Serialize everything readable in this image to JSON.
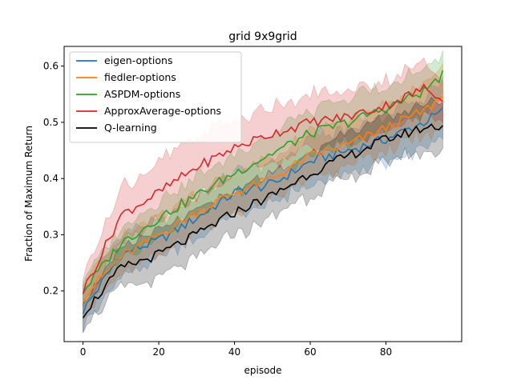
{
  "chart_data": {
    "type": "line",
    "title": "grid  9x9grid",
    "xlabel": "episode",
    "ylabel": "Fraction of Maximum Return",
    "xlim": [
      -5,
      100
    ],
    "ylim": [
      0.11,
      0.635
    ],
    "xticks": [
      0,
      20,
      40,
      60,
      80
    ],
    "yticks": [
      0.2,
      0.3,
      0.4,
      0.5,
      0.6
    ],
    "legend_position": "upper-left",
    "grid": false,
    "series": [
      {
        "name": "eigen-options",
        "color": "#1f77b4",
        "x": [
          0,
          10,
          20,
          30,
          40,
          50,
          60,
          70,
          80,
          90,
          95
        ],
        "y": [
          0.165,
          0.265,
          0.29,
          0.33,
          0.375,
          0.39,
          0.43,
          0.45,
          0.47,
          0.5,
          0.52
        ],
        "band": [
          0.03,
          0.035,
          0.035,
          0.035,
          0.035,
          0.035,
          0.04,
          0.04,
          0.04,
          0.045,
          0.05
        ]
      },
      {
        "name": "fiedler-options",
        "color": "#ff7f0e",
        "x": [
          0,
          10,
          20,
          30,
          40,
          50,
          60,
          70,
          80,
          90,
          95
        ],
        "y": [
          0.19,
          0.26,
          0.3,
          0.34,
          0.375,
          0.4,
          0.44,
          0.46,
          0.49,
          0.52,
          0.545
        ],
        "band": [
          0.03,
          0.035,
          0.035,
          0.035,
          0.035,
          0.035,
          0.04,
          0.04,
          0.04,
          0.045,
          0.05
        ]
      },
      {
        "name": "ASPDM-options",
        "color": "#2ca02c",
        "x": [
          0,
          10,
          20,
          30,
          40,
          50,
          60,
          70,
          80,
          90,
          95
        ],
        "y": [
          0.2,
          0.285,
          0.33,
          0.37,
          0.41,
          0.445,
          0.48,
          0.5,
          0.525,
          0.555,
          0.585
        ],
        "band": [
          0.02,
          0.03,
          0.03,
          0.035,
          0.035,
          0.035,
          0.04,
          0.04,
          0.04,
          0.04,
          0.035
        ]
      },
      {
        "name": "ApproxAverage-options",
        "color": "#d62728",
        "x": [
          0,
          10,
          20,
          30,
          40,
          50,
          60,
          70,
          80,
          90,
          95
        ],
        "y": [
          0.2,
          0.335,
          0.375,
          0.42,
          0.455,
          0.48,
          0.5,
          0.51,
          0.53,
          0.56,
          0.545
        ],
        "band": [
          0.025,
          0.05,
          0.055,
          0.055,
          0.05,
          0.05,
          0.05,
          0.045,
          0.045,
          0.045,
          0.045
        ]
      },
      {
        "name": "Q-learning",
        "color": "#000000",
        "x": [
          0,
          10,
          20,
          30,
          40,
          50,
          60,
          70,
          80,
          90,
          95
        ],
        "y": [
          0.16,
          0.24,
          0.265,
          0.3,
          0.34,
          0.37,
          0.41,
          0.44,
          0.47,
          0.49,
          0.495
        ],
        "band": [
          0.025,
          0.035,
          0.04,
          0.04,
          0.04,
          0.04,
          0.04,
          0.04,
          0.04,
          0.04,
          0.045
        ]
      }
    ]
  }
}
